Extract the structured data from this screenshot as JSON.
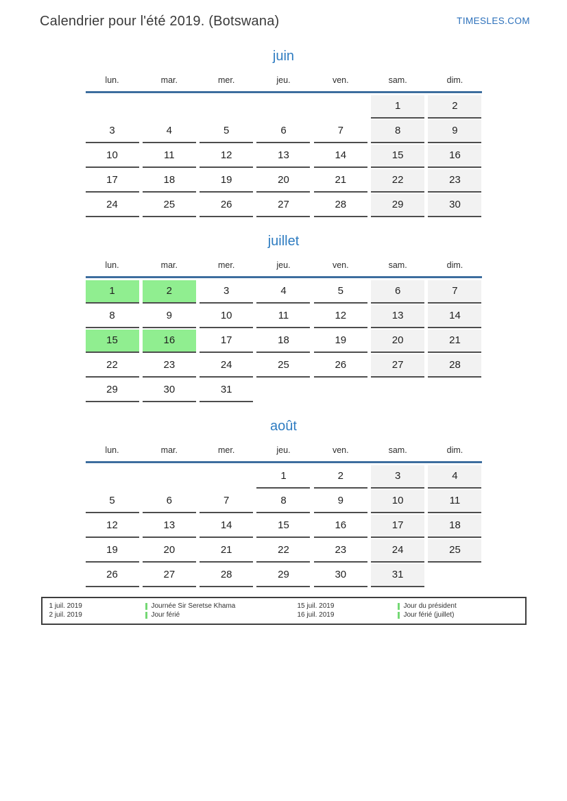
{
  "header": {
    "title": "Calendrier pour l'été 2019. (Botswana)",
    "site_link": "TIMESLES.COM"
  },
  "weekday_labels": [
    "lun.",
    "mar.",
    "mer.",
    "jeu.",
    "ven.",
    "sam.",
    "dim."
  ],
  "weekend_columns": [
    5,
    6
  ],
  "months": [
    {
      "name": "juin",
      "holidays": [],
      "weeks": [
        [
          0,
          0,
          0,
          0,
          0,
          1,
          2
        ],
        [
          3,
          4,
          5,
          6,
          7,
          8,
          9
        ],
        [
          10,
          11,
          12,
          13,
          14,
          15,
          16
        ],
        [
          17,
          18,
          19,
          20,
          21,
          22,
          23
        ],
        [
          24,
          25,
          26,
          27,
          28,
          29,
          30
        ]
      ]
    },
    {
      "name": "juillet",
      "holidays": [
        1,
        2,
        15,
        16
      ],
      "weeks": [
        [
          1,
          2,
          3,
          4,
          5,
          6,
          7
        ],
        [
          8,
          9,
          10,
          11,
          12,
          13,
          14
        ],
        [
          15,
          16,
          17,
          18,
          19,
          20,
          21
        ],
        [
          22,
          23,
          24,
          25,
          26,
          27,
          28
        ],
        [
          29,
          30,
          31,
          0,
          0,
          0,
          0
        ]
      ]
    },
    {
      "name": "août",
      "holidays": [],
      "weeks": [
        [
          0,
          0,
          0,
          1,
          2,
          3,
          4
        ],
        [
          5,
          6,
          7,
          8,
          9,
          10,
          11
        ],
        [
          12,
          13,
          14,
          15,
          16,
          17,
          18
        ],
        [
          19,
          20,
          21,
          22,
          23,
          24,
          25
        ],
        [
          26,
          27,
          28,
          29,
          30,
          31,
          0
        ]
      ]
    }
  ],
  "legend": {
    "groups": [
      {
        "dates": [
          "1 juil. 2019",
          "2 juil. 2019"
        ],
        "labels": [
          "Journée Sir Seretse Khama",
          "Jour férié"
        ]
      },
      {
        "dates": [
          "15 juil. 2019",
          "16 juil. 2019"
        ],
        "labels": [
          "Jour du président",
          "Jour férié (juillet)"
        ]
      }
    ]
  },
  "colors": {
    "accent_blue": "#2e7cc1",
    "line_blue": "#3c6d9e",
    "link_blue": "#2a6fba",
    "holiday_green": "#90ee90",
    "weekend_gray": "#f2f2f2",
    "legend_bar_green": "#74d874",
    "underline_gray": "#4c4c4c"
  }
}
